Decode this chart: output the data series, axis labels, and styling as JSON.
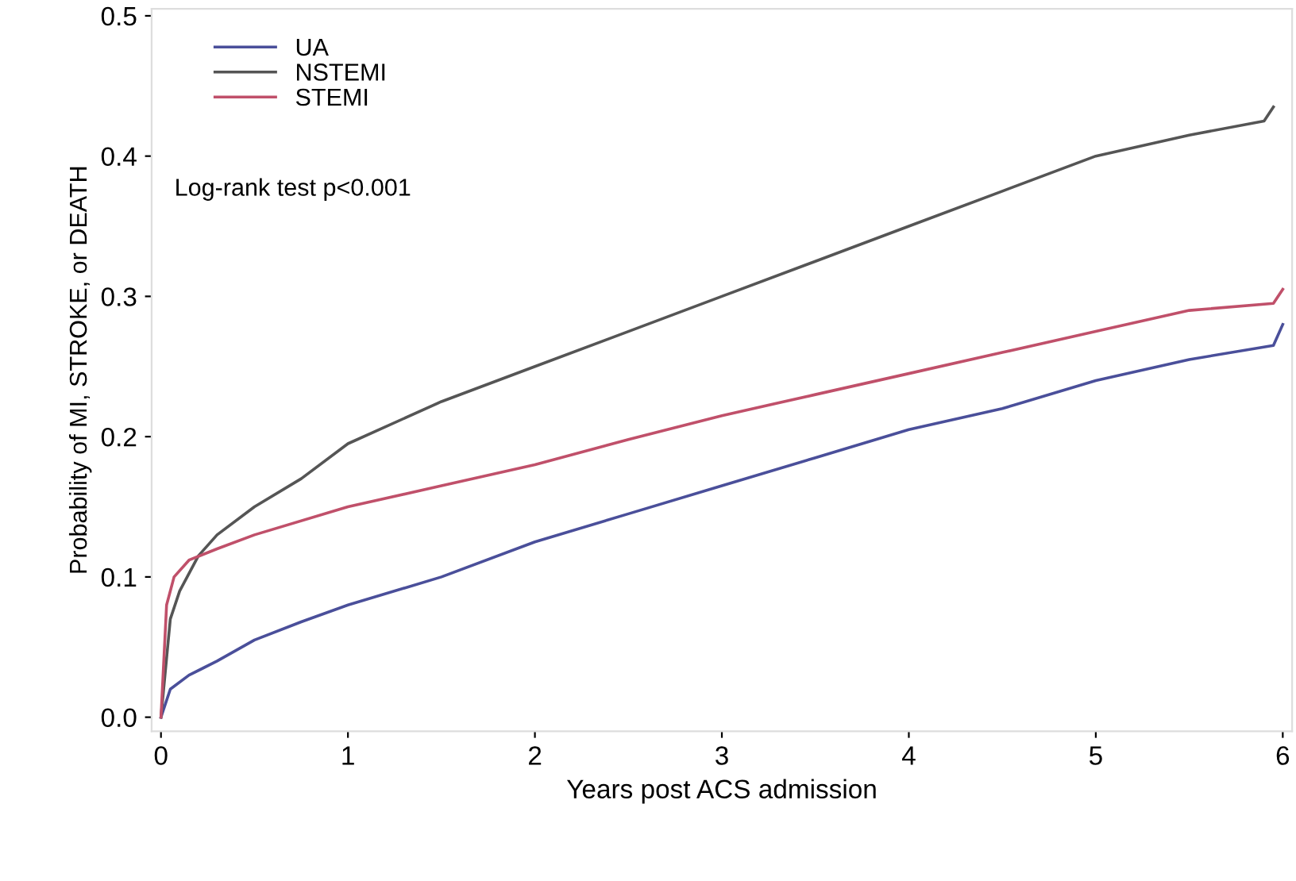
{
  "chart_data": {
    "type": "line",
    "xlabel": "Years post ACS admission",
    "ylabel": "Probability of MI, STROKE, or DEATH",
    "annotations": [
      "Log-rank test p<0.001"
    ],
    "xlim": [
      -0.05,
      6.05
    ],
    "ylim": [
      -0.01,
      0.505
    ],
    "xticks": [
      0,
      1,
      2,
      3,
      4,
      5,
      6
    ],
    "yticks": [
      {
        "value": 0,
        "label": "0.0"
      },
      0.1,
      0.2,
      0.3,
      0.4,
      0.5
    ],
    "grid": false,
    "legend": "top left",
    "marker": "none",
    "line_style": "solid",
    "series": [
      {
        "name": "UA",
        "color": "#4a4f9a",
        "x": [
          0,
          0.05,
          0.15,
          0.3,
          0.5,
          0.75,
          1,
          1.5,
          2,
          2.5,
          3,
          3.5,
          4,
          4.5,
          5,
          5.5,
          5.95,
          6.0
        ],
        "values": [
          0,
          0.02,
          0.03,
          0.04,
          0.055,
          0.068,
          0.08,
          0.1,
          0.125,
          0.145,
          0.165,
          0.185,
          0.205,
          0.22,
          0.24,
          0.255,
          0.265,
          0.28
        ]
      },
      {
        "name": "NSTEMI",
        "color": "#555555",
        "x": [
          0,
          0.05,
          0.1,
          0.2,
          0.3,
          0.5,
          0.75,
          1,
          1.5,
          2,
          2.5,
          3,
          3.5,
          4,
          4.5,
          5,
          5.5,
          5.9,
          5.95
        ],
        "values": [
          0,
          0.07,
          0.09,
          0.115,
          0.13,
          0.15,
          0.17,
          0.195,
          0.225,
          0.25,
          0.275,
          0.3,
          0.325,
          0.35,
          0.375,
          0.4,
          0.415,
          0.425,
          0.435
        ]
      },
      {
        "name": "STEMI",
        "color": "#c0506a",
        "x": [
          0,
          0.03,
          0.07,
          0.15,
          0.3,
          0.5,
          1,
          1.5,
          2,
          2.5,
          3,
          3.5,
          4,
          4.5,
          5,
          5.5,
          5.95,
          6.0
        ],
        "values": [
          0,
          0.08,
          0.1,
          0.112,
          0.12,
          0.13,
          0.15,
          0.165,
          0.18,
          0.198,
          0.215,
          0.23,
          0.245,
          0.26,
          0.275,
          0.29,
          0.295,
          0.305
        ]
      }
    ]
  }
}
